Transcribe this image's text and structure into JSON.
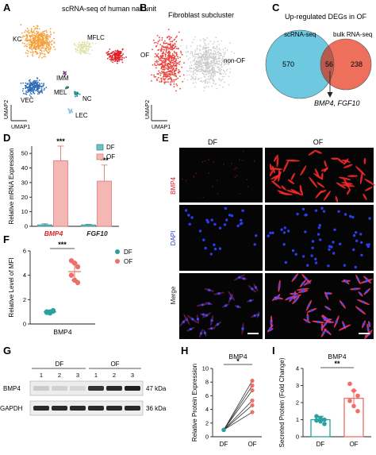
{
  "panels": {
    "a": {
      "letter": "A",
      "title": "scRNA-seq of human nail unit",
      "clusters": [
        {
          "label": "KC",
          "color": "#f5a03a"
        },
        {
          "label": "MFLC",
          "color": "#dfe2a8"
        },
        {
          "label": "FIB",
          "color": "#e0202a"
        },
        {
          "label": "IMM",
          "color": "#7b3f8c"
        },
        {
          "label": "MEL",
          "color": "#2e8b57"
        },
        {
          "label": "NC",
          "color": "#2a8f8f"
        },
        {
          "label": "VEC",
          "color": "#2f6cb5"
        },
        {
          "label": "LEC",
          "color": "#8ec0e4"
        }
      ],
      "xlabel": "UMAP1",
      "ylabel": "UMAP2"
    },
    "b": {
      "letter": "B",
      "title": "Fibroblast subcluster",
      "of_label": "OF",
      "nonof_label": "non-OF",
      "xlabel": "UMAP1",
      "ylabel": "UMAP2",
      "colors": {
        "of": "#e8463f",
        "nonof": "#c9c9c9"
      }
    },
    "c": {
      "letter": "C",
      "title": "Up-regulated DEGs in OF",
      "left_label": "scRNA-seq",
      "right_label": "bulk RNA-seq",
      "left_only": "570",
      "overlap": "56",
      "right_only": "238",
      "genes_a": "BMP4",
      "genes_sep": ", ",
      "genes_b": "FGF10",
      "colors": {
        "left": "#6dc8e0",
        "right": "#ee6f5c",
        "overlap": "#b85a4e"
      }
    },
    "e": {
      "letter": "E",
      "col_labels": [
        "DF",
        "OF"
      ],
      "row_labels": [
        "BMP4",
        "DAPI",
        "Merge"
      ]
    },
    "g": {
      "letter": "G",
      "group_labels": [
        "DF",
        "OF"
      ],
      "lane_numbers": [
        "1",
        "2",
        "3",
        "1",
        "2",
        "3"
      ],
      "row_labels": [
        "BMP4",
        "GAPDH"
      ],
      "sizes": [
        "47 kDa",
        "36 kDa"
      ],
      "bmp4_band_intensity": [
        0.15,
        0.12,
        0.1,
        0.85,
        0.9,
        0.95
      ],
      "gapdh_band_intensity": [
        0.9,
        0.9,
        0.9,
        0.9,
        0.9,
        0.9
      ]
    }
  },
  "chart_data": [
    {
      "panel": "D",
      "type": "bar",
      "ylabel": "Relative mRNA Expression",
      "ylim": [
        0,
        55
      ],
      "yticks": [
        0,
        10,
        20,
        30,
        40,
        50
      ],
      "categories": [
        "BMP4",
        "FGF10"
      ],
      "category_colors": [
        "#e0202a",
        "#222222"
      ],
      "series": [
        {
          "name": "DF",
          "values": [
            1.0,
            1.0
          ],
          "errors": [
            0.7,
            0.3
          ],
          "color": "#6fbfc4"
        },
        {
          "name": "OF",
          "values": [
            45,
            31
          ],
          "errors": [
            10,
            11
          ],
          "color": "#f4b7b4"
        }
      ],
      "significance": [
        "***",
        "***"
      ]
    },
    {
      "panel": "F",
      "type": "scatter",
      "ylabel": "Relative Level of MFI",
      "ylim": [
        0,
        6
      ],
      "yticks": [
        0,
        2,
        4,
        6
      ],
      "category": "BMP4",
      "series": [
        {
          "name": "DF",
          "color": "#2aa1a1",
          "points": [
            0.95,
            1.0,
            1.05,
            1.0,
            0.9,
            1.1
          ],
          "mean": 1.0,
          "sd": 0.08
        },
        {
          "name": "OF",
          "color": "#ee6f6a",
          "points": [
            5.2,
            5.0,
            4.7,
            4.0,
            3.6,
            3.4
          ],
          "mean": 4.3,
          "sd": 0.7
        }
      ],
      "significance": "***"
    },
    {
      "panel": "H",
      "type": "line",
      "title": "BMP4",
      "ylabel": "Relative Protein Expression",
      "ylim": [
        0,
        10
      ],
      "yticks": [
        0,
        2,
        4,
        6,
        8,
        10
      ],
      "categories": [
        "DF",
        "OF"
      ],
      "pairs": [
        [
          1,
          8.2
        ],
        [
          1,
          7.5
        ],
        [
          1,
          6.8
        ],
        [
          1,
          5.3
        ],
        [
          1,
          4.6
        ],
        [
          1,
          3.6
        ]
      ],
      "colors": {
        "df": "#2aa1a1",
        "of": "#ee6f6a"
      },
      "significance": "*"
    },
    {
      "panel": "I",
      "type": "bar",
      "title": "BMP4",
      "ylabel": "Secreted Protein (Fold Change)",
      "ylim": [
        0,
        4
      ],
      "yticks": [
        0,
        1,
        2,
        3,
        4
      ],
      "categories": [
        "DF",
        "OF"
      ],
      "values": [
        1.0,
        2.25
      ],
      "errors": [
        0.2,
        0.45
      ],
      "colors": [
        "#2aa1a1",
        "#ee6f6a"
      ],
      "points": [
        [
          1.2,
          1.1,
          1.0,
          0.95,
          0.9,
          0.75
        ],
        [
          3.1,
          2.7,
          2.4,
          2.1,
          1.8,
          1.5
        ]
      ],
      "significance": "**"
    }
  ]
}
